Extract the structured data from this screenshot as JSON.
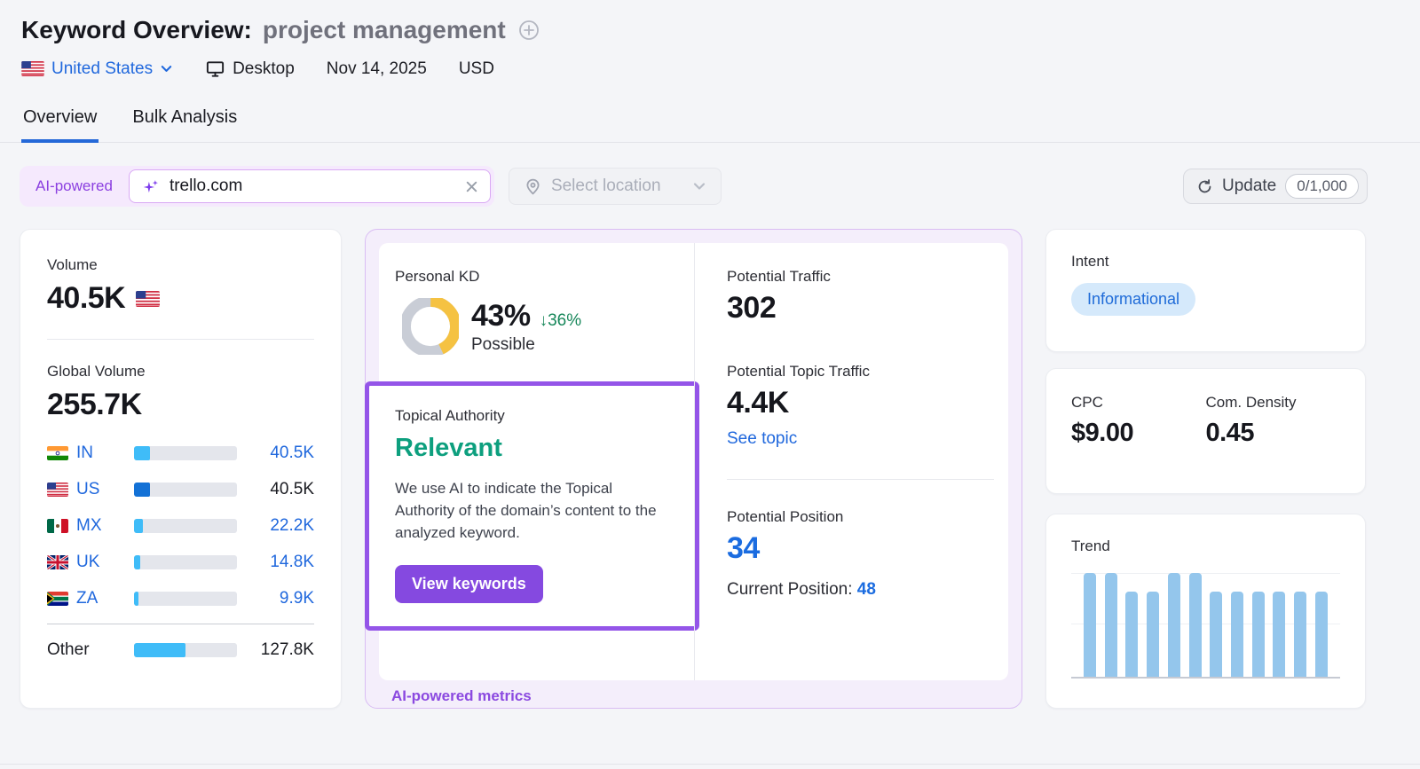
{
  "header": {
    "title": "Keyword Overview:",
    "keyword": "project management",
    "country": "United States",
    "device": "Desktop",
    "date": "Nov 14, 2025",
    "currency": "USD"
  },
  "tabs": [
    {
      "label": "Overview",
      "active": true
    },
    {
      "label": "Bulk Analysis",
      "active": false
    }
  ],
  "toolbar": {
    "ai_badge": "AI-powered",
    "domain_input": "trello.com",
    "location_placeholder": "Select location",
    "update_label": "Update",
    "update_counter": "0/1,000"
  },
  "volume_card": {
    "volume_label": "Volume",
    "volume_value": "40.5K",
    "global_label": "Global Volume",
    "global_value": "255.7K",
    "countries": [
      {
        "code": "IN",
        "value": "40.5K",
        "share_pct": 15.8,
        "highlight": false
      },
      {
        "code": "US",
        "value": "40.5K",
        "share_pct": 15.8,
        "highlight": true
      },
      {
        "code": "MX",
        "value": "22.2K",
        "share_pct": 8.7,
        "highlight": false
      },
      {
        "code": "UK",
        "value": "14.8K",
        "share_pct": 5.8,
        "highlight": false
      },
      {
        "code": "ZA",
        "value": "9.9K",
        "share_pct": 3.9,
        "highlight": false
      }
    ],
    "other": {
      "label": "Other",
      "value": "127.8K",
      "share_pct": 50
    }
  },
  "kd_card": {
    "label": "Personal KD",
    "value": "43%",
    "pct": 43,
    "delta": "↓36%",
    "sublabel": "Possible"
  },
  "topical": {
    "label": "Topical Authority",
    "status": "Relevant",
    "description": "We use AI to indicate the Topical Authority of the domain’s content to the analyzed keyword.",
    "cta": "View keywords"
  },
  "potential": {
    "traffic_label": "Potential Traffic",
    "traffic_value": "302",
    "topic_label": "Potential Topic Traffic",
    "topic_value": "4.4K",
    "see_topic": "See topic",
    "position_label": "Potential Position",
    "position_value": "34",
    "current_label": "Current Position: ",
    "current_value": "48"
  },
  "ai_footer": "AI-powered metrics",
  "intent_card": {
    "label": "Intent",
    "badge": "Informational"
  },
  "cpc_card": {
    "cpc_label": "CPC",
    "cpc_value": "$9.00",
    "density_label": "Com. Density",
    "density_value": "0.45"
  },
  "trend_card": {
    "label": "Trend"
  },
  "chart_data": [
    {
      "type": "pie",
      "name": "personal_kd_donut",
      "title": "Personal KD",
      "values": [
        43,
        57
      ],
      "labels": [
        "Personal KD 43%",
        "Remaining"
      ],
      "colors": [
        "#f5c242",
        "#c9cdd6"
      ]
    },
    {
      "type": "bar",
      "name": "trend",
      "title": "Trend",
      "x": [
        1,
        2,
        3,
        4,
        5,
        6,
        7,
        8,
        9,
        10,
        11,
        12
      ],
      "values": [
        1.0,
        1.0,
        0.82,
        0.82,
        1.0,
        1.0,
        0.82,
        0.82,
        0.82,
        0.82,
        0.82,
        0.82
      ],
      "xlabel": "",
      "ylabel": "",
      "ylim": [
        0,
        1
      ],
      "grid": true,
      "bar_color": "#94c6ec"
    }
  ],
  "colors": {
    "accent_purple": "#9455e8",
    "button_purple": "#8549e0",
    "ai_badge_purple": "#8b3fe0",
    "link_blue": "#2068dd",
    "position_blue": "#1b6ce0",
    "tab_underline_blue": "#2468d8",
    "relevant_green": "#0d9f7e",
    "delta_green": "#17875a",
    "kd_yellow": "#f5c242",
    "bar_light_blue": "#3fbcf8",
    "bar_dark_blue": "#1371d6",
    "trend_bar_blue": "#94c6ec",
    "intent_badge_bg": "#d5e9fb"
  }
}
